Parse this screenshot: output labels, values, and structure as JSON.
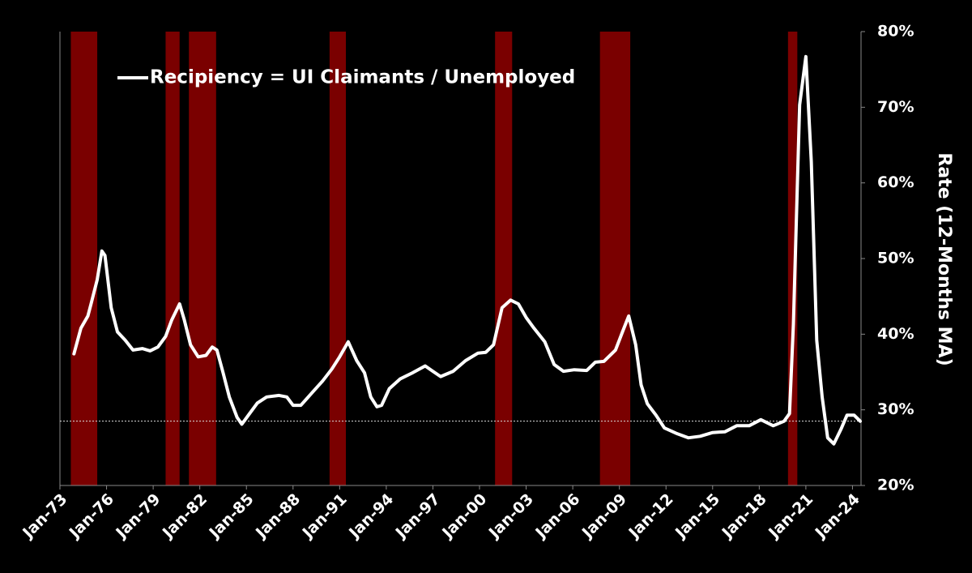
{
  "chart_data": {
    "type": "line",
    "y_label": "Rate (12-Months MA)",
    "legend": "upper left",
    "x": [
      1973.9,
      1974.35,
      1974.8,
      1975.0,
      1975.4,
      1975.7,
      1975.9,
      1976.3,
      1976.7,
      1977.2,
      1977.7,
      1978.3,
      1978.8,
      1979.3,
      1979.8,
      1980.2,
      1980.7,
      1981.0,
      1981.4,
      1981.9,
      1982.4,
      1982.8,
      1983.1,
      1983.5,
      1983.9,
      1984.4,
      1984.7,
      1985.2,
      1985.7,
      1986.3,
      1987.1,
      1987.6,
      1988.0,
      1988.5,
      1989.2,
      1989.9,
      1990.5,
      1991.0,
      1991.55,
      1992.1,
      1992.6,
      1993.0,
      1993.4,
      1993.7,
      1994.2,
      1994.9,
      1995.7,
      1996.5,
      1997.0,
      1997.5,
      1998.3,
      1999.1,
      1999.9,
      2000.4,
      2000.9,
      2001.45,
      2002.0,
      2002.5,
      2003.0,
      2003.5,
      2004.2,
      2004.8,
      2005.4,
      2006.1,
      2006.9,
      2007.45,
      2008.0,
      2008.75,
      2009.2,
      2009.6,
      2010.05,
      2010.4,
      2010.8,
      2011.35,
      2011.9,
      2012.65,
      2013.45,
      2014.2,
      2015.0,
      2015.8,
      2016.55,
      2017.35,
      2018.1,
      2018.9,
      2019.6,
      2019.95,
      2020.2,
      2020.6,
      2021.0,
      2021.35,
      2021.7,
      2022.05,
      2022.4,
      2022.8,
      2023.25,
      2023.65,
      2024.1,
      2024.5
    ],
    "series": [
      {
        "name": "Recipiency = UI Claimants / Unemployed",
        "color": "#ffffff",
        "values": [
          37.4,
          40.8,
          42.4,
          44,
          47.2,
          51,
          50.4,
          43.5,
          40.3,
          39.2,
          37.9,
          38.1,
          37.8,
          38.3,
          39.7,
          41.9,
          44,
          41.9,
          38.6,
          37,
          37.2,
          38.3,
          37.9,
          34.9,
          31.7,
          29,
          28.1,
          29.5,
          30.9,
          31.7,
          31.9,
          31.7,
          30.6,
          30.6,
          32.2,
          33.8,
          35.4,
          37,
          39,
          36.5,
          34.9,
          31.7,
          30.4,
          30.6,
          32.8,
          34.1,
          34.9,
          35.8,
          35.1,
          34.4,
          35.1,
          36.5,
          37.5,
          37.6,
          38.6,
          43.5,
          44.5,
          44,
          42.2,
          40.8,
          39,
          36,
          35.1,
          35.3,
          35.2,
          36.3,
          36.4,
          37.9,
          40.3,
          42.4,
          38.6,
          33.3,
          30.8,
          29.3,
          27.6,
          26.9,
          26.3,
          26.5,
          27,
          27.1,
          27.9,
          27.9,
          28.7,
          27.9,
          28.5,
          29.5,
          41.3,
          70.3,
          76.7,
          62.8,
          39.2,
          31.7,
          26.3,
          25.5,
          27.4,
          29.3,
          29.3,
          28.5
        ]
      }
    ],
    "recessions": [
      {
        "start": 1973.7,
        "end": 1975.4
      },
      {
        "start": 1979.8,
        "end": 1980.7
      },
      {
        "start": 1981.3,
        "end": 1983.05
      },
      {
        "start": 1990.35,
        "end": 1991.4
      },
      {
        "start": 2001.0,
        "end": 2002.1
      },
      {
        "start": 2007.75,
        "end": 2009.7
      },
      {
        "start": 2019.85,
        "end": 2020.45
      }
    ],
    "recession_color": "#7a0000",
    "reference_line": 28.5,
    "xlim": [
      1973,
      2024.55
    ],
    "xticks": [
      {
        "value": 1973,
        "label": "Jan-73"
      },
      {
        "value": 1976,
        "label": "Jan-76"
      },
      {
        "value": 1979,
        "label": "Jan-79"
      },
      {
        "value": 1982,
        "label": "Jan-82"
      },
      {
        "value": 1985,
        "label": "Jan-85"
      },
      {
        "value": 1988,
        "label": "Jan-88"
      },
      {
        "value": 1991,
        "label": "Jan-91"
      },
      {
        "value": 1994,
        "label": "Jan-94"
      },
      {
        "value": 1997,
        "label": "Jan-97"
      },
      {
        "value": 2000,
        "label": "Jan-00"
      },
      {
        "value": 2003,
        "label": "Jan-03"
      },
      {
        "value": 2006,
        "label": "Jan-06"
      },
      {
        "value": 2009,
        "label": "Jan-09"
      },
      {
        "value": 2012,
        "label": "Jan-12"
      },
      {
        "value": 2015,
        "label": "Jan-15"
      },
      {
        "value": 2018,
        "label": "Jan-18"
      },
      {
        "value": 2021,
        "label": "Jan-21"
      },
      {
        "value": 2024,
        "label": "Jan-24"
      }
    ],
    "ylim": [
      20,
      80
    ],
    "yticks": [
      {
        "value": 20,
        "label": "20%"
      },
      {
        "value": 30,
        "label": "30%"
      },
      {
        "value": 40,
        "label": "40%"
      },
      {
        "value": 50,
        "label": "50%"
      },
      {
        "value": 60,
        "label": "60%"
      },
      {
        "value": 70,
        "label": "70%"
      },
      {
        "value": 80,
        "label": "80%"
      }
    ]
  }
}
